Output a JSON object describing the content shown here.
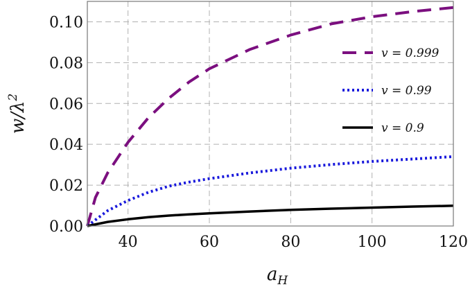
{
  "chart_data": {
    "type": "line",
    "xlabel": "a_H",
    "xlabel_main": "a",
    "xlabel_sub": "H",
    "ylabel": "w/λ²",
    "ylabel_main": "w/λ",
    "ylabel_sup": "2",
    "xlim": [
      30,
      120
    ],
    "ylim": [
      0,
      0.11
    ],
    "xticks": [
      40,
      60,
      80,
      100,
      120
    ],
    "xtick_labels": [
      "40",
      "60",
      "80",
      "100",
      "120"
    ],
    "yticks": [
      0,
      0.02,
      0.04,
      0.06,
      0.08,
      0.1
    ],
    "ytick_labels": [
      "0.00",
      "0.02",
      "0.04",
      "0.06",
      "0.08",
      "0.10"
    ],
    "grid": true,
    "legend_position": "right",
    "series": [
      {
        "name": "v = 0.999",
        "color": "#7b0f7f",
        "style": "dashed",
        "x": [
          30,
          32,
          35,
          40,
          45,
          50,
          55,
          60,
          70,
          80,
          90,
          100,
          110,
          120
        ],
        "y": [
          0.0,
          0.014,
          0.026,
          0.041,
          0.053,
          0.0625,
          0.0705,
          0.077,
          0.0865,
          0.0935,
          0.099,
          0.1025,
          0.105,
          0.107
        ]
      },
      {
        "name": "v = 0.99",
        "color": "#1a1adc",
        "style": "dotted",
        "x": [
          30,
          35,
          40,
          45,
          50,
          55,
          60,
          70,
          80,
          90,
          100,
          110,
          120
        ],
        "y": [
          0.0,
          0.0075,
          0.0125,
          0.0165,
          0.0195,
          0.0215,
          0.0232,
          0.026,
          0.0283,
          0.0301,
          0.0316,
          0.0328,
          0.034
        ]
      },
      {
        "name": "v = 0.9",
        "color": "#000000",
        "style": "solid",
        "x": [
          30,
          35,
          40,
          45,
          50,
          55,
          60,
          70,
          80,
          90,
          100,
          110,
          120
        ],
        "y": [
          0.0,
          0.002,
          0.0033,
          0.0043,
          0.0051,
          0.0057,
          0.0062,
          0.0071,
          0.0079,
          0.0085,
          0.009,
          0.0095,
          0.0099
        ]
      }
    ]
  }
}
